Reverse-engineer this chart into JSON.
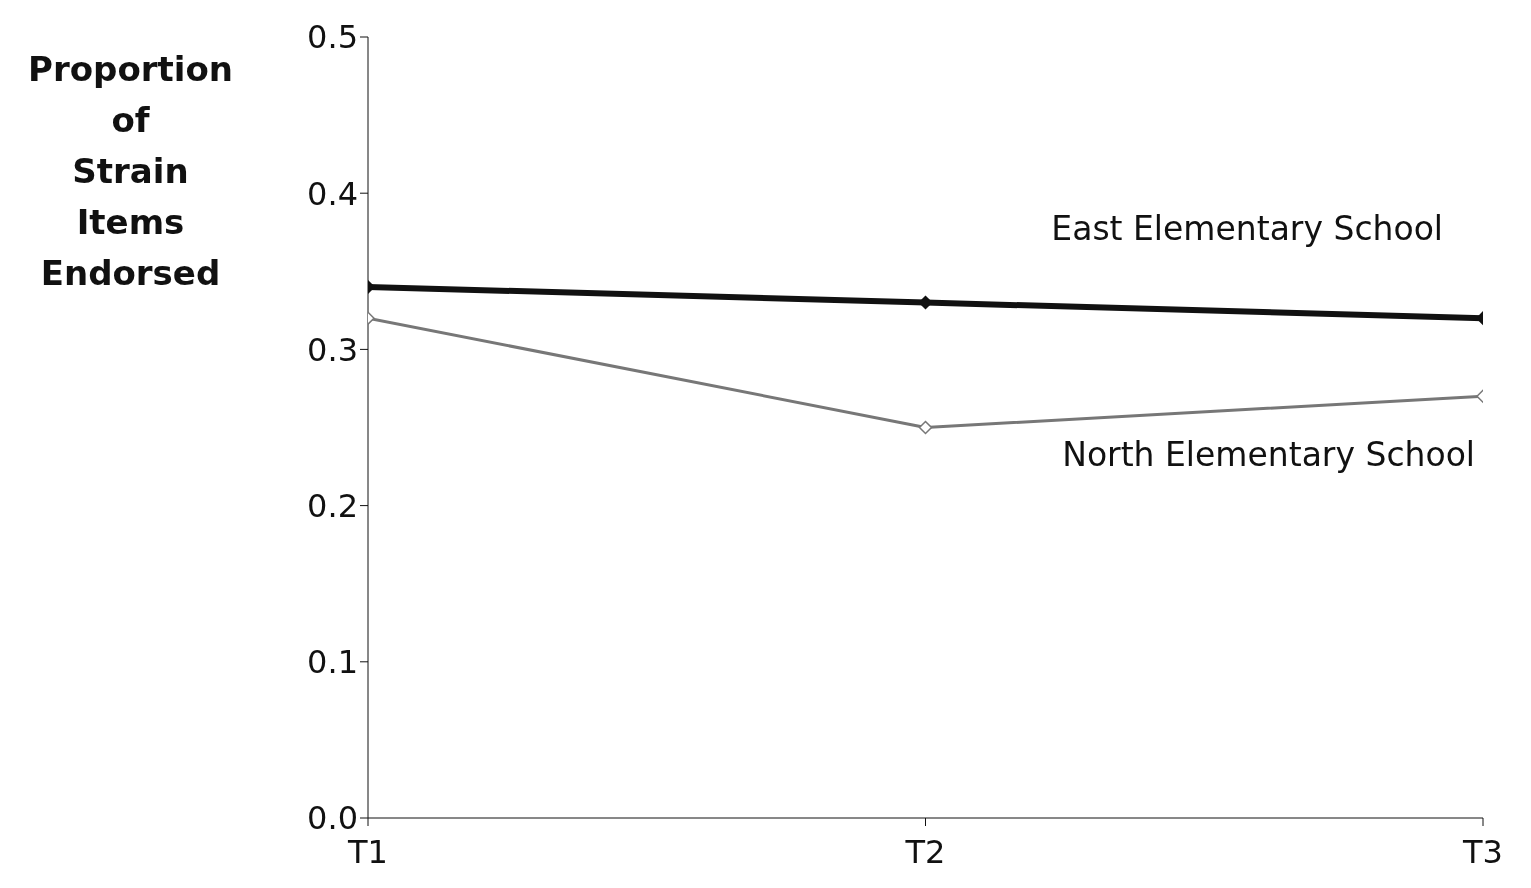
{
  "chart_data": {
    "type": "line",
    "ylabel": "Proportion of Strain Items Endorsed",
    "categories": [
      "T1",
      "T2",
      "T3"
    ],
    "series": [
      {
        "name": "East Elementary School",
        "color": "#111111",
        "values": [
          0.34,
          0.33,
          0.32
        ]
      },
      {
        "name": "North Elementary School",
        "color": "#777777",
        "values": [
          0.32,
          0.25,
          0.27
        ]
      }
    ],
    "ylim": [
      0,
      0.5
    ],
    "yticks": [
      {
        "value": 0,
        "label": "0.0"
      },
      0.1,
      0.2,
      0.3,
      0.4,
      0.5
    ],
    "marker": "diamond",
    "line_style": "solid",
    "grid": false,
    "legend": false
  }
}
